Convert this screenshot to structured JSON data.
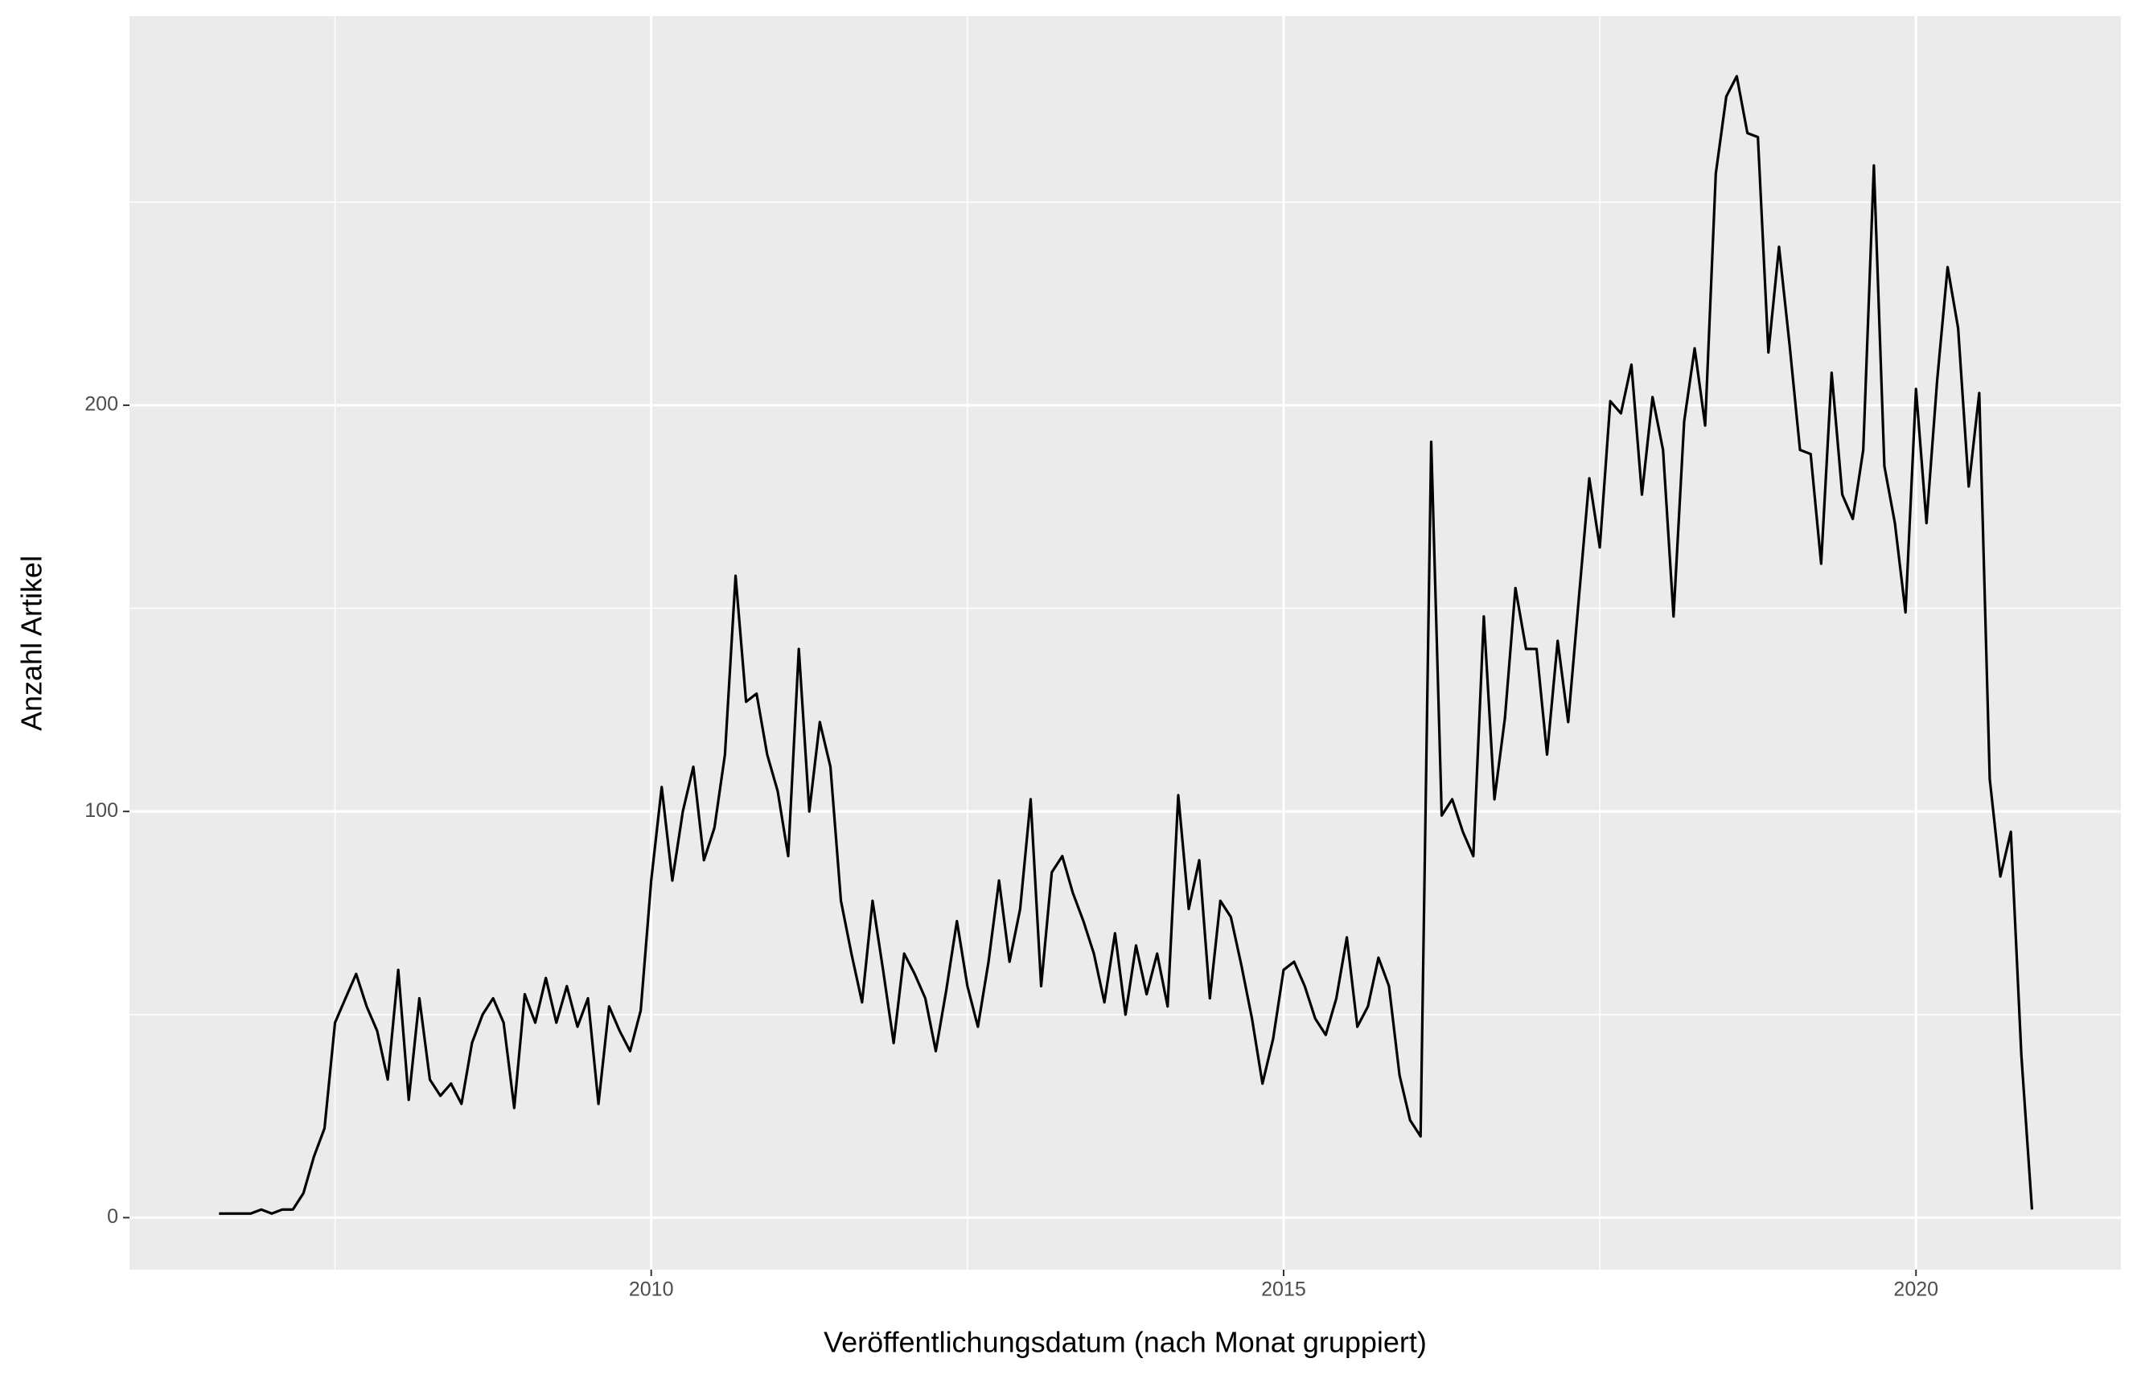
{
  "chart_data": {
    "type": "line",
    "x_label": "Veröffentlichungsdatum (nach Monat gruppiert)",
    "y_label": "Anzahl Artikel",
    "x": [
      2006.583,
      2006.667,
      2006.75,
      2006.833,
      2006.917,
      2007.0,
      2007.083,
      2007.167,
      2007.25,
      2007.333,
      2007.417,
      2007.5,
      2007.583,
      2007.667,
      2007.75,
      2007.833,
      2007.917,
      2008.0,
      2008.083,
      2008.167,
      2008.25,
      2008.333,
      2008.417,
      2008.5,
      2008.583,
      2008.667,
      2008.75,
      2008.833,
      2008.917,
      2009.0,
      2009.083,
      2009.167,
      2009.25,
      2009.333,
      2009.417,
      2009.5,
      2009.583,
      2009.667,
      2009.75,
      2009.833,
      2009.917,
      2010.0,
      2010.083,
      2010.167,
      2010.25,
      2010.333,
      2010.417,
      2010.5,
      2010.583,
      2010.667,
      2010.75,
      2010.833,
      2010.917,
      2011.0,
      2011.083,
      2011.167,
      2011.25,
      2011.333,
      2011.417,
      2011.5,
      2011.583,
      2011.667,
      2011.75,
      2011.833,
      2011.917,
      2012.0,
      2012.083,
      2012.167,
      2012.25,
      2012.333,
      2012.417,
      2012.5,
      2012.583,
      2012.667,
      2012.75,
      2012.833,
      2012.917,
      2013.0,
      2013.083,
      2013.167,
      2013.25,
      2013.333,
      2013.417,
      2013.5,
      2013.583,
      2013.667,
      2013.75,
      2013.833,
      2013.917,
      2014.0,
      2014.083,
      2014.167,
      2014.25,
      2014.333,
      2014.417,
      2014.5,
      2014.583,
      2014.667,
      2014.75,
      2014.833,
      2014.917,
      2015.0,
      2015.083,
      2015.167,
      2015.25,
      2015.333,
      2015.417,
      2015.5,
      2015.583,
      2015.667,
      2015.75,
      2015.833,
      2015.917,
      2016.0,
      2016.083,
      2016.167,
      2016.25,
      2016.333,
      2016.417,
      2016.5,
      2016.583,
      2016.667,
      2016.75,
      2016.833,
      2016.917,
      2017.0,
      2017.083,
      2017.167,
      2017.25,
      2017.333,
      2017.417,
      2017.5,
      2017.583,
      2017.667,
      2017.75,
      2017.833,
      2017.917,
      2018.0,
      2018.083,
      2018.167,
      2018.25,
      2018.333,
      2018.417,
      2018.5,
      2018.583,
      2018.667,
      2018.75,
      2018.833,
      2018.917,
      2019.0,
      2019.083,
      2019.167,
      2019.25,
      2019.333,
      2019.417,
      2019.5,
      2019.583,
      2019.667,
      2019.75,
      2019.833,
      2019.917,
      2020.0,
      2020.083,
      2020.167,
      2020.25,
      2020.333,
      2020.417,
      2020.5,
      2020.583,
      2020.667,
      2020.75,
      2020.833,
      2020.917
    ],
    "series": [
      {
        "name": "Anzahl Artikel",
        "color": "#000000",
        "values": [
          1,
          1,
          1,
          1,
          2,
          1,
          2,
          2,
          6,
          15,
          22,
          48,
          54,
          60,
          52,
          46,
          34,
          61,
          29,
          54,
          34,
          30,
          33,
          28,
          43,
          50,
          54,
          48,
          27,
          55,
          48,
          59,
          48,
          57,
          47,
          54,
          28,
          52,
          46,
          41,
          51,
          83,
          106,
          83,
          100,
          111,
          88,
          96,
          114,
          158,
          127,
          129,
          114,
          105,
          89,
          140,
          100,
          122,
          111,
          78,
          65,
          53,
          78,
          61,
          43,
          65,
          60,
          54,
          41,
          56,
          73,
          57,
          47,
          63,
          83,
          63,
          76,
          103,
          57,
          85,
          89,
          80,
          73,
          65,
          53,
          70,
          50,
          67,
          55,
          65,
          52,
          104,
          76,
          88,
          54,
          78,
          74,
          62,
          49,
          33,
          44,
          61,
          63,
          57,
          49,
          45,
          54,
          69,
          47,
          52,
          64,
          57,
          35,
          24,
          20,
          191,
          99,
          103,
          95,
          89,
          148,
          103,
          123,
          155,
          140,
          140,
          114,
          142,
          122,
          152,
          182,
          165,
          201,
          198,
          210,
          178,
          202,
          189,
          148,
          196,
          214,
          195,
          257,
          276,
          281,
          267,
          266,
          213,
          239,
          215,
          189,
          188,
          161,
          208,
          178,
          172,
          189,
          259,
          185,
          171,
          149,
          204,
          171,
          206,
          234,
          219,
          180,
          203,
          108,
          84,
          95,
          40,
          2
        ]
      }
    ],
    "xlim": [
      2005.875,
      2021.62
    ],
    "xticks": [
      2010,
      2015,
      2020
    ],
    "ylim": [
      -12.8,
      295.8
    ],
    "yticks": [
      0,
      100,
      200
    ],
    "grid": true
  }
}
